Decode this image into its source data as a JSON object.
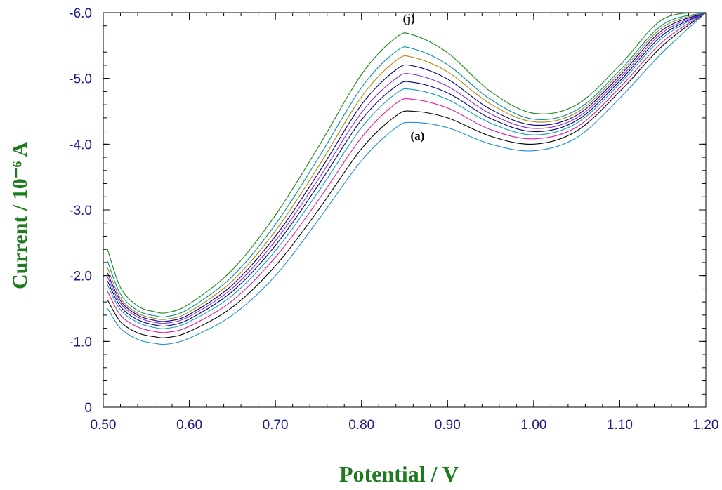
{
  "chart_data": {
    "type": "line",
    "title": "",
    "xlabel": "Potential / V",
    "ylabel": "Current / 10⁻⁶ A",
    "xlim": [
      0.5,
      1.2
    ],
    "ylim": [
      0,
      -6.0
    ],
    "y_inverted": true,
    "x_ticks": [
      "0.50",
      "0.60",
      "0.70",
      "0.80",
      "0.90",
      "1.00",
      "1.10",
      "1.20"
    ],
    "y_ticks": [
      "0",
      "-1.0",
      "-2.0",
      "-3.0",
      "-4.0",
      "-5.0",
      "-6.0"
    ],
    "grid": false,
    "x": [
      0.505,
      0.52,
      0.54,
      0.56,
      0.575,
      0.6,
      0.65,
      0.7,
      0.75,
      0.8,
      0.84,
      0.86,
      0.9,
      0.95,
      1.0,
      1.05,
      1.1,
      1.15,
      1.2
    ],
    "series": [
      {
        "color": "#1f8fd0",
        "values": [
          -1.5,
          -1.2,
          -1.03,
          -0.97,
          -0.96,
          -1.05,
          -1.4,
          -2.0,
          -2.85,
          -3.75,
          -4.25,
          -4.33,
          -4.25,
          -4.0,
          -3.9,
          -4.1,
          -4.7,
          -5.4,
          -6.0
        ]
      },
      {
        "color": "#000000",
        "values": [
          -1.63,
          -1.3,
          -1.13,
          -1.07,
          -1.06,
          -1.15,
          -1.52,
          -2.15,
          -3.0,
          -3.93,
          -4.43,
          -4.5,
          -4.4,
          -4.12,
          -4.0,
          -4.2,
          -4.8,
          -5.5,
          -6.0
        ]
      },
      {
        "color": "#e01aa8",
        "values": [
          -1.76,
          -1.4,
          -1.22,
          -1.15,
          -1.14,
          -1.23,
          -1.62,
          -2.28,
          -3.15,
          -4.1,
          -4.62,
          -4.68,
          -4.55,
          -4.22,
          -4.08,
          -4.26,
          -4.86,
          -5.56,
          -6.0
        ]
      },
      {
        "color": "#14a0b8",
        "values": [
          -1.86,
          -1.48,
          -1.29,
          -1.21,
          -1.2,
          -1.3,
          -1.7,
          -2.38,
          -3.28,
          -4.25,
          -4.77,
          -4.83,
          -4.68,
          -4.32,
          -4.14,
          -4.32,
          -4.92,
          -5.62,
          -6.0
        ]
      },
      {
        "color": "#000080",
        "values": [
          -1.92,
          -1.53,
          -1.33,
          -1.25,
          -1.24,
          -1.34,
          -1.76,
          -2.46,
          -3.38,
          -4.37,
          -4.88,
          -4.94,
          -4.78,
          -4.39,
          -4.19,
          -4.36,
          -4.96,
          -5.66,
          -6.0
        ]
      },
      {
        "color": "#8a2be2",
        "values": [
          -1.98,
          -1.58,
          -1.37,
          -1.29,
          -1.28,
          -1.38,
          -1.81,
          -2.53,
          -3.47,
          -4.48,
          -5.0,
          -5.06,
          -4.88,
          -4.46,
          -4.24,
          -4.4,
          -5.0,
          -5.7,
          -6.0
        ]
      },
      {
        "color": "#00008b",
        "values": [
          -2.04,
          -1.62,
          -1.4,
          -1.32,
          -1.31,
          -1.41,
          -1.86,
          -2.6,
          -3.56,
          -4.6,
          -5.13,
          -5.19,
          -4.99,
          -4.53,
          -4.29,
          -4.44,
          -5.04,
          -5.74,
          -6.0
        ]
      },
      {
        "color": "#b8860b",
        "values": [
          -2.12,
          -1.66,
          -1.43,
          -1.35,
          -1.34,
          -1.45,
          -1.92,
          -2.68,
          -3.66,
          -4.72,
          -5.27,
          -5.32,
          -5.1,
          -4.61,
          -4.34,
          -4.48,
          -5.08,
          -5.78,
          -6.0
        ]
      },
      {
        "color": "#0090a0",
        "values": [
          -2.22,
          -1.72,
          -1.47,
          -1.39,
          -1.38,
          -1.5,
          -1.99,
          -2.78,
          -3.79,
          -4.86,
          -5.41,
          -5.45,
          -5.21,
          -4.68,
          -4.38,
          -4.52,
          -5.12,
          -5.82,
          -6.0
        ]
      },
      {
        "color": "#1a8a1a",
        "values": [
          -2.4,
          -1.82,
          -1.54,
          -1.45,
          -1.44,
          -1.57,
          -2.09,
          -2.92,
          -3.96,
          -5.06,
          -5.62,
          -5.66,
          -5.39,
          -4.8,
          -4.47,
          -4.6,
          -5.2,
          -5.9,
          -6.0
        ]
      }
    ],
    "annotations": [
      {
        "text": "(j)",
        "x": 0.855,
        "y": -5.85
      },
      {
        "text": "(a)",
        "x": 0.865,
        "y": -4.07
      }
    ]
  }
}
